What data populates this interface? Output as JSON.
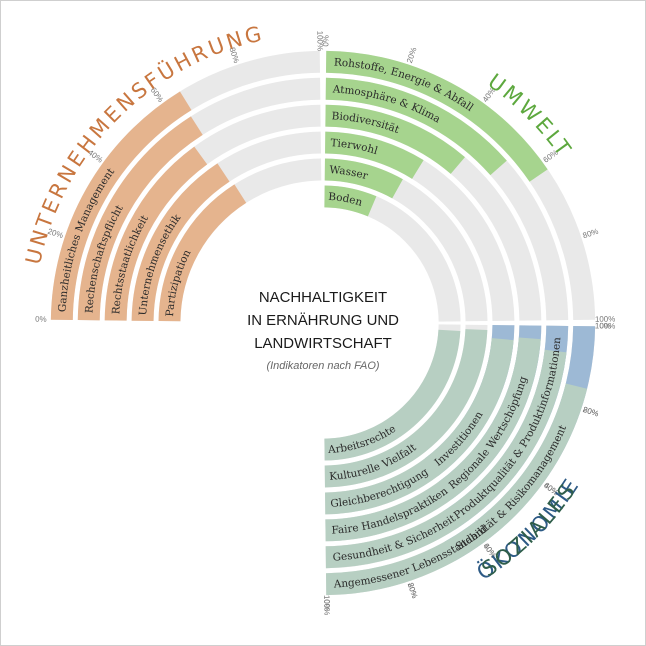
{
  "center": {
    "title_lines": [
      "NACHHALTIGKEIT",
      "IN ERNÄHRUNG UND",
      "LANDWIRTSCHAFT"
    ],
    "subtitle": "(Indikatoren nach FAO)"
  },
  "colors": {
    "track": "#e9e9e9",
    "tick_label": "#777777"
  },
  "chart_data": {
    "type": "radial-bar",
    "quadrants": [
      {
        "id": "umwelt",
        "title": "UMWELT",
        "color": "#a6d48e",
        "title_color": "#5da83e",
        "ticks": [
          "0%",
          "20%",
          "40%",
          "60%",
          "80%",
          "100%"
        ],
        "categories": [
          "Rohstoffe, Energie & Abfall",
          "Atmosphäre & Klima",
          "Biodiversität",
          "Tierwohl",
          "Wasser",
          "Boden"
        ],
        "values": [
          62,
          54,
          45,
          35,
          32,
          25
        ]
      },
      {
        "id": "oekonomie",
        "title": "ÖKONOMIE",
        "color": "#9db9d5",
        "title_color": "#2d5a85",
        "ticks": [
          "0%",
          "20%",
          "40%",
          "60%",
          "80%",
          "100%"
        ],
        "categories": [
          "Stabilität & Risikomanagement",
          "Produktqualität & Produktinformationen",
          "Regionale Wertschöpfung",
          "Investitionen"
        ],
        "values": [
          68,
          64,
          60,
          59
        ]
      },
      {
        "id": "soziales",
        "title": "SOZIALES",
        "color": "#b7cfc2",
        "title_color": "#2f5e4a",
        "ticks": [
          "0%",
          "20%",
          "40%",
          "60%",
          "80%",
          "100%"
        ],
        "categories": [
          "Angemessener Lebensstandard",
          "Gesundheit & Sicherheit",
          "Faire Handelspraktiken",
          "Gleichberechtigung",
          "Kulturelle Vielfalt",
          "Arbeitsrechte"
        ],
        "values": [
          85,
          93,
          96,
          95,
          98,
          97
        ]
      },
      {
        "id": "unternehmen",
        "title": "UNTERNEHMENSFÜHRUNG",
        "color": "#e5b48e",
        "title_color": "#c8763f",
        "ticks": [
          "0%",
          "20%",
          "40%",
          "60%",
          "80%",
          "100%"
        ],
        "categories": [
          "Ganzheitliches Management",
          "Rechenschaftspflicht",
          "Rechtsstaatlichkeit",
          "Unternehmensethik",
          "Partizipation"
        ],
        "values": [
          65,
          64,
          60,
          63,
          64
        ]
      }
    ]
  }
}
